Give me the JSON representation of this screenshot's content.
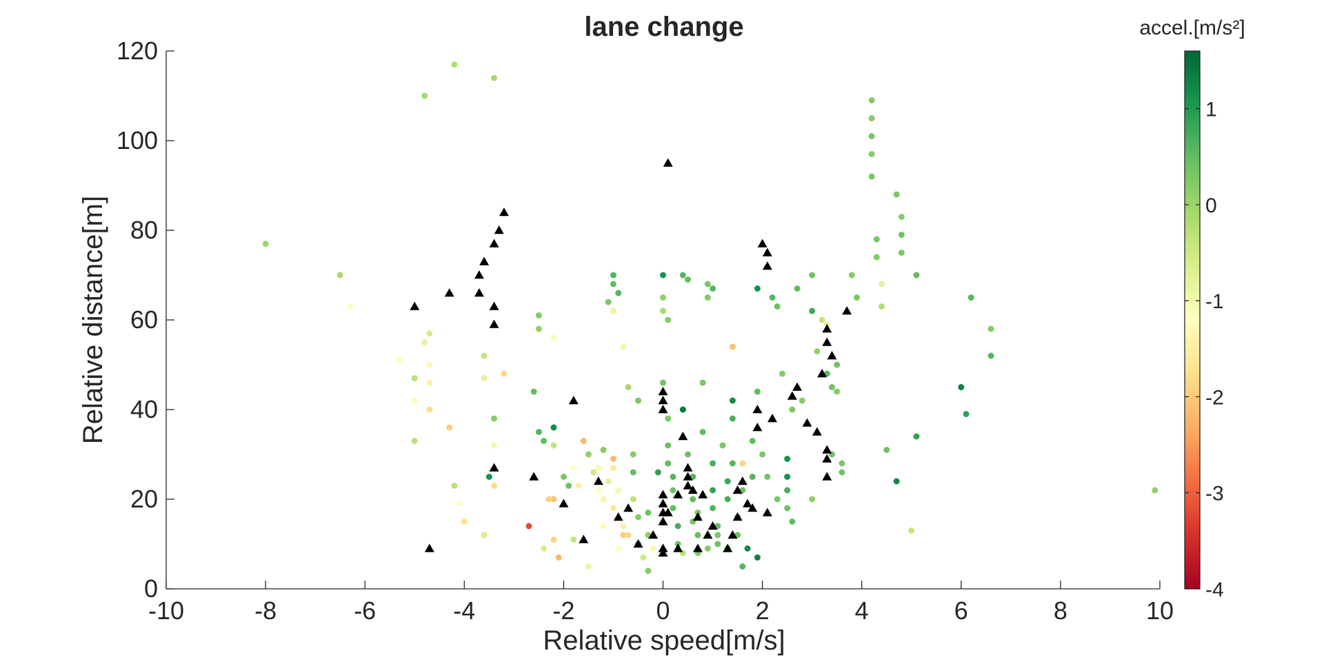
{
  "chart_data": {
    "type": "scatter",
    "title": "lane change",
    "xlabel": "Relative speed[m/s]",
    "ylabel": "Relative distance[m]",
    "xlim": [
      -10,
      10
    ],
    "ylim": [
      0,
      120
    ],
    "xticks": [
      "-10",
      "-8",
      "-6",
      "-4",
      "-2",
      "0",
      "2",
      "4",
      "6",
      "8",
      "10"
    ],
    "yticks": [
      "0",
      "20",
      "40",
      "60",
      "80",
      "100",
      "120"
    ],
    "grid": false,
    "colorbar": {
      "title": "accel.[m/s²]",
      "range": [
        -4,
        1.6
      ],
      "ticks": [
        "1",
        "0",
        "-1",
        "-2",
        "-3",
        "-4"
      ],
      "colormap": "red-yellow-green",
      "colors": [
        "#a50026",
        "#d73027",
        "#f46d43",
        "#fdae61",
        "#fee08b",
        "#ffffbf",
        "#d9ef8b",
        "#a6d96a",
        "#66bd63",
        "#1a9850",
        "#006837"
      ]
    },
    "series": [
      {
        "marker": "circle",
        "colored_by": "accel",
        "points": [
          [
            -8.0,
            77,
            0.0
          ],
          [
            -6.5,
            70,
            -0.1
          ],
          [
            -6.3,
            63,
            -1.2
          ],
          [
            -4.8,
            110,
            -0.1
          ],
          [
            -4.2,
            117,
            -0.2
          ],
          [
            -3.4,
            114,
            -0.1
          ],
          [
            -5.3,
            51,
            -1.2
          ],
          [
            -5.0,
            47,
            -0.3
          ],
          [
            -5.0,
            42,
            -1.1
          ],
          [
            -4.8,
            55,
            -0.8
          ],
          [
            -4.7,
            57,
            -0.6
          ],
          [
            -4.7,
            50,
            -1.3
          ],
          [
            -4.7,
            46,
            -1.5
          ],
          [
            -4.7,
            40,
            -1.8
          ],
          [
            -5.0,
            33,
            -0.3
          ],
          [
            -4.3,
            36,
            -2.0
          ],
          [
            -4.2,
            23,
            -0.3
          ],
          [
            -4.1,
            19,
            -1.2
          ],
          [
            -4.0,
            15,
            -1.7
          ],
          [
            -3.6,
            52,
            -0.4
          ],
          [
            -3.6,
            47,
            -0.8
          ],
          [
            -3.4,
            38,
            0.2
          ],
          [
            -3.4,
            32,
            -1.0
          ],
          [
            -3.4,
            23,
            -1.8
          ],
          [
            -3.5,
            25,
            1.1
          ],
          [
            -3.6,
            12,
            -0.6
          ],
          [
            -3.2,
            48,
            -1.9
          ],
          [
            -2.5,
            61,
            0.2
          ],
          [
            -2.5,
            58,
            0.1
          ],
          [
            -2.2,
            56,
            -1.1
          ],
          [
            -2.6,
            44,
            0.5
          ],
          [
            -2.5,
            35,
            0.6
          ],
          [
            -2.4,
            33,
            0.5
          ],
          [
            -2.2,
            36,
            1.2
          ],
          [
            -2.2,
            32,
            -0.4
          ],
          [
            -2.2,
            20,
            -2.1
          ],
          [
            -2.2,
            11,
            -1.9
          ],
          [
            -2.1,
            7,
            -2.2
          ],
          [
            -2.0,
            25,
            0.3
          ],
          [
            -2.0,
            19,
            -1.4
          ],
          [
            -1.9,
            23,
            0.4
          ],
          [
            -1.8,
            27,
            -1.2
          ],
          [
            -1.7,
            23,
            -1.5
          ],
          [
            -1.6,
            33,
            -2.2
          ],
          [
            -1.5,
            30,
            0.1
          ],
          [
            -1.4,
            26,
            -0.5
          ],
          [
            -1.3,
            27,
            -1.1
          ],
          [
            -1.3,
            22,
            -1.2
          ],
          [
            -1.2,
            31,
            0.2
          ],
          [
            -1.2,
            20,
            -1.4
          ],
          [
            -1.1,
            24,
            -0.8
          ],
          [
            -1.0,
            29,
            -2.2
          ],
          [
            -1.0,
            27,
            -1.6
          ],
          [
            -1.0,
            18,
            -1.6
          ],
          [
            -0.9,
            22,
            -1.0
          ],
          [
            -0.8,
            12,
            -2.0
          ],
          [
            -0.8,
            14,
            -1.5
          ],
          [
            -0.7,
            12,
            -1.9
          ],
          [
            -0.6,
            30,
            0.2
          ],
          [
            -0.6,
            26,
            0.5
          ],
          [
            -0.6,
            20,
            -0.3
          ],
          [
            -0.5,
            16,
            0.2
          ],
          [
            -0.5,
            10,
            0.3
          ],
          [
            -0.4,
            7,
            -0.5
          ],
          [
            -0.3,
            12,
            0.1
          ],
          [
            -0.3,
            4,
            0.2
          ],
          [
            -1.5,
            5,
            -0.9
          ],
          [
            -1.0,
            70,
            0.6
          ],
          [
            -1.0,
            68,
            0.5
          ],
          [
            -0.9,
            66,
            0.6
          ],
          [
            -1.1,
            64,
            0.3
          ],
          [
            -1.0,
            62,
            -0.9
          ],
          [
            -0.8,
            54,
            -1.0
          ],
          [
            -0.7,
            45,
            -0.1
          ],
          [
            -0.5,
            42,
            0.3
          ],
          [
            0.0,
            46,
            0.4
          ],
          [
            0.0,
            70,
            1.1
          ],
          [
            0.0,
            65,
            0.1
          ],
          [
            0.0,
            62,
            -0.1
          ],
          [
            0.1,
            60,
            0.2
          ],
          [
            0.1,
            38,
            0.3
          ],
          [
            0.1,
            32,
            0.4
          ],
          [
            0.1,
            28,
            0.5
          ],
          [
            0.2,
            25,
            0.6
          ],
          [
            0.2,
            22,
            0.4
          ],
          [
            0.2,
            18,
            0.5
          ],
          [
            0.3,
            14,
            0.7
          ],
          [
            0.3,
            10,
            0.4
          ],
          [
            0.4,
            40,
            1.4
          ],
          [
            0.4,
            70,
            0.6
          ],
          [
            0.5,
            69,
            0.5
          ],
          [
            0.5,
            30,
            0.4
          ],
          [
            0.6,
            25,
            0.6
          ],
          [
            0.6,
            20,
            0.5
          ],
          [
            0.6,
            15,
            0.3
          ],
          [
            0.7,
            12,
            0.5
          ],
          [
            0.7,
            8,
            0.2
          ],
          [
            0.8,
            46,
            0.3
          ],
          [
            0.8,
            35,
            0.5
          ],
          [
            0.9,
            68,
            0.3
          ],
          [
            0.9,
            65,
            0.2
          ],
          [
            1.0,
            67,
            0.6
          ],
          [
            1.0,
            28,
            0.7
          ],
          [
            1.0,
            22,
            0.9
          ],
          [
            1.0,
            18,
            0.6
          ],
          [
            1.1,
            14,
            0.5
          ],
          [
            1.1,
            10,
            0.4
          ],
          [
            1.2,
            32,
            0.3
          ],
          [
            1.3,
            24,
            0.8
          ],
          [
            1.3,
            20,
            0.7
          ],
          [
            1.4,
            54,
            -2.1
          ],
          [
            1.4,
            42,
            1.2
          ],
          [
            1.4,
            38,
            0.7
          ],
          [
            1.4,
            28,
            0.6
          ],
          [
            1.5,
            16,
            0.5
          ],
          [
            1.5,
            12,
            0.4
          ],
          [
            1.6,
            28,
            -1.9
          ],
          [
            1.6,
            22,
            0.4
          ],
          [
            1.6,
            5,
            0.6
          ],
          [
            1.7,
            9,
            1.2
          ],
          [
            1.8,
            33,
            0.5
          ],
          [
            1.8,
            25,
            0.6
          ],
          [
            1.9,
            7,
            1.3
          ],
          [
            1.9,
            67,
            1.1
          ],
          [
            1.9,
            44,
            0.5
          ],
          [
            2.0,
            30,
            0.3
          ],
          [
            2.1,
            25,
            0.4
          ],
          [
            2.2,
            65,
            0.6
          ],
          [
            2.3,
            63,
            0.4
          ],
          [
            2.3,
            20,
            0.3
          ],
          [
            2.4,
            48,
            0.2
          ],
          [
            2.5,
            29,
            1.1
          ],
          [
            2.5,
            25,
            1.1
          ],
          [
            2.5,
            22,
            0.7
          ],
          [
            2.5,
            18,
            0.4
          ],
          [
            2.6,
            40,
            0.3
          ],
          [
            2.7,
            67,
            0.5
          ],
          [
            2.8,
            42,
            0.2
          ],
          [
            3.0,
            70,
            0.4
          ],
          [
            3.0,
            62,
            0.8
          ],
          [
            3.0,
            20,
            0.1
          ],
          [
            3.1,
            53,
            0.1
          ],
          [
            3.2,
            60,
            -0.4
          ],
          [
            3.3,
            59,
            -0.8
          ],
          [
            3.3,
            48,
            0.6
          ],
          [
            3.4,
            45,
            0.4
          ],
          [
            3.4,
            30,
            0.4
          ],
          [
            3.5,
            50,
            0.4
          ],
          [
            3.5,
            44,
            0.2
          ],
          [
            3.6,
            28,
            0.3
          ],
          [
            3.6,
            26,
            0.4
          ],
          [
            3.8,
            70,
            0.2
          ],
          [
            3.9,
            65,
            0.3
          ],
          [
            4.2,
            109,
            0.2
          ],
          [
            4.2,
            105,
            0.2
          ],
          [
            4.2,
            101,
            0.3
          ],
          [
            4.2,
            97,
            0.2
          ],
          [
            4.2,
            92,
            0.3
          ],
          [
            4.3,
            78,
            0.3
          ],
          [
            4.3,
            74,
            0.2
          ],
          [
            4.4,
            68,
            -0.8
          ],
          [
            4.4,
            63,
            -0.2
          ],
          [
            4.5,
            31,
            0.4
          ],
          [
            4.7,
            88,
            0.3
          ],
          [
            4.8,
            83,
            0.2
          ],
          [
            4.8,
            79,
            0.4
          ],
          [
            4.8,
            75,
            0.3
          ],
          [
            4.7,
            24,
            1.2
          ],
          [
            5.0,
            13,
            -0.4
          ],
          [
            5.1,
            70,
            0.5
          ],
          [
            5.1,
            34,
            0.9
          ],
          [
            6.0,
            45,
            1.3
          ],
          [
            6.1,
            39,
            0.9
          ],
          [
            6.2,
            65,
            0.6
          ],
          [
            6.6,
            58,
            0.2
          ],
          [
            6.6,
            52,
            0.6
          ],
          [
            9.9,
            22,
            0.1
          ],
          [
            -2.7,
            14,
            -3.2
          ],
          [
            -2.4,
            9,
            -0.6
          ],
          [
            -2.3,
            20,
            -1.9
          ],
          [
            -1.8,
            11,
            -0.4
          ],
          [
            -1.2,
            14,
            -1.3
          ],
          [
            -0.9,
            9,
            -1.2
          ],
          [
            -0.2,
            9,
            -1.4
          ],
          [
            0.4,
            8,
            -0.3
          ],
          [
            0.9,
            9,
            0.2
          ],
          [
            1.3,
            9,
            0.5
          ],
          [
            1.1,
            12,
            0.3
          ],
          [
            0.7,
            17,
            0.3
          ],
          [
            -0.3,
            17,
            0.4
          ],
          [
            -0.1,
            26,
            0.9
          ],
          [
            2.6,
            15,
            0.5
          ]
        ]
      },
      {
        "marker": "triangle",
        "color": "#000000",
        "points": [
          [
            -5.0,
            63
          ],
          [
            -4.3,
            66
          ],
          [
            -3.7,
            66
          ],
          [
            -3.7,
            70
          ],
          [
            -3.6,
            73
          ],
          [
            -3.4,
            77
          ],
          [
            -3.3,
            80
          ],
          [
            -3.2,
            84
          ],
          [
            -3.4,
            63
          ],
          [
            -3.4,
            59
          ],
          [
            -4.7,
            9
          ],
          [
            -3.4,
            27
          ],
          [
            -2.6,
            25
          ],
          [
            -2.0,
            19
          ],
          [
            -1.8,
            42
          ],
          [
            -1.6,
            11
          ],
          [
            -1.3,
            24
          ],
          [
            -0.9,
            16
          ],
          [
            -0.7,
            18
          ],
          [
            -0.5,
            10
          ],
          [
            -0.2,
            12
          ],
          [
            0.0,
            8
          ],
          [
            0.0,
            9
          ],
          [
            0.0,
            15
          ],
          [
            0.0,
            17
          ],
          [
            0.0,
            19
          ],
          [
            0.0,
            21
          ],
          [
            0.0,
            40
          ],
          [
            0.0,
            42
          ],
          [
            0.0,
            44
          ],
          [
            0.1,
            95
          ],
          [
            0.1,
            17
          ],
          [
            0.3,
            9
          ],
          [
            0.3,
            21
          ],
          [
            0.4,
            34
          ],
          [
            0.5,
            23
          ],
          [
            0.5,
            25
          ],
          [
            0.5,
            27
          ],
          [
            0.6,
            22
          ],
          [
            0.7,
            16
          ],
          [
            0.7,
            9
          ],
          [
            0.8,
            21
          ],
          [
            0.9,
            12
          ],
          [
            1.0,
            14
          ],
          [
            1.3,
            9
          ],
          [
            1.4,
            12
          ],
          [
            1.5,
            16
          ],
          [
            1.5,
            22
          ],
          [
            1.6,
            24
          ],
          [
            1.7,
            19
          ],
          [
            1.8,
            18
          ],
          [
            1.9,
            40
          ],
          [
            1.9,
            36
          ],
          [
            2.0,
            77
          ],
          [
            2.1,
            75
          ],
          [
            2.1,
            72
          ],
          [
            2.1,
            17
          ],
          [
            2.2,
            38
          ],
          [
            2.6,
            43
          ],
          [
            2.7,
            45
          ],
          [
            2.9,
            37
          ],
          [
            3.1,
            35
          ],
          [
            3.3,
            58
          ],
          [
            3.2,
            48
          ],
          [
            3.3,
            55
          ],
          [
            3.3,
            31
          ],
          [
            3.3,
            25
          ],
          [
            3.3,
            29
          ],
          [
            3.4,
            52
          ],
          [
            3.7,
            62
          ]
        ]
      }
    ]
  }
}
